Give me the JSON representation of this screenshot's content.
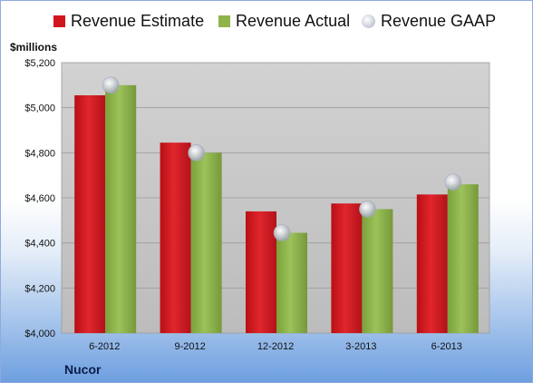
{
  "legend": {
    "estimate": "Revenue Estimate",
    "actual": "Revenue Actual",
    "gaap": "Revenue GAAP"
  },
  "unit_label": "$millions",
  "company": "Nucor",
  "colors": {
    "estimate": "#d2161e",
    "actual": "#8eb54a",
    "gaap": "#c0c4cc",
    "plot_bg": "#c8c8c8"
  },
  "chart_data": {
    "type": "bar",
    "categories": [
      "6-2012",
      "9-2012",
      "12-2012",
      "3-2013",
      "6-2013"
    ],
    "series": [
      {
        "name": "Revenue Estimate",
        "values": [
          5055,
          4845,
          4540,
          4575,
          4615
        ]
      },
      {
        "name": "Revenue Actual",
        "values": [
          5100,
          4800,
          4445,
          4550,
          4660
        ]
      },
      {
        "name": "Revenue GAAP",
        "values": [
          5100,
          4800,
          4445,
          4550,
          4670
        ]
      }
    ],
    "ylim": [
      4000,
      5200
    ],
    "yticks": [
      4000,
      4200,
      4400,
      4600,
      4800,
      5000,
      5200
    ],
    "ytick_labels": [
      "$4,000",
      "$4,200",
      "$4,400",
      "$4,600",
      "$4,800",
      "$5,000",
      "$5,200"
    ],
    "grid": true,
    "legend_position": "top"
  }
}
